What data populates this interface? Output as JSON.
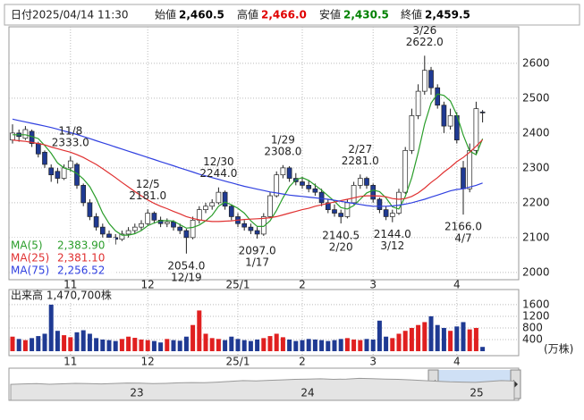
{
  "header": {
    "date_label": "日付",
    "datetime": "2025/04/14 11:30",
    "fields": [
      {
        "label": "始値",
        "value": "2,460.5",
        "color": "#000000"
      },
      {
        "label": "高値",
        "value": "2,466.0",
        "color": "#e00000"
      },
      {
        "label": "安値",
        "value": "2,430.5",
        "color": "#008000"
      },
      {
        "label": "終値",
        "value": "2,459.5",
        "color": "#000000"
      }
    ]
  },
  "chart_data": {
    "type": "candlestick",
    "categories": [
      null,
      null,
      null,
      null,
      null,
      null,
      null,
      null,
      null,
      "11",
      null,
      null,
      null,
      null,
      null,
      null,
      null,
      null,
      null,
      null,
      null,
      "12",
      null,
      null,
      null,
      null,
      null,
      null,
      null,
      null,
      null,
      null,
      null,
      null,
      null,
      "25/1",
      null,
      null,
      null,
      null,
      null,
      null,
      null,
      null,
      null,
      "2",
      null,
      null,
      null,
      null,
      null,
      null,
      null,
      null,
      null,
      null,
      "3",
      null,
      null,
      null,
      null,
      null,
      null,
      null,
      null,
      null,
      null,
      null,
      null,
      "4",
      null,
      null,
      null,
      null
    ],
    "candles": [
      [
        2380,
        2425,
        2370,
        2400
      ],
      [
        2400,
        2410,
        2375,
        2390
      ],
      [
        2385,
        2420,
        2380,
        2410
      ],
      [
        2405,
        2410,
        2360,
        2370
      ],
      [
        2370,
        2375,
        2330,
        2340
      ],
      [
        2345,
        2350,
        2300,
        2310
      ],
      [
        2300,
        2310,
        2260,
        2280
      ],
      [
        2290,
        2300,
        2255,
        2270
      ],
      [
        2270,
        2310,
        2265,
        2300
      ],
      [
        2300,
        2333,
        2290,
        2320
      ],
      [
        2310,
        2315,
        2240,
        2250
      ],
      [
        2250,
        2255,
        2190,
        2200
      ],
      [
        2200,
        2210,
        2150,
        2160
      ],
      [
        2160,
        2170,
        2120,
        2130
      ],
      [
        2130,
        2140,
        2100,
        2110
      ],
      [
        2110,
        2120,
        2085,
        2100
      ],
      [
        2100,
        2110,
        2080,
        2095
      ],
      [
        2095,
        2120,
        2090,
        2110
      ],
      [
        2110,
        2130,
        2100,
        2120
      ],
      [
        2120,
        2140,
        2110,
        2130
      ],
      [
        2130,
        2150,
        2120,
        2140
      ],
      [
        2140,
        2181,
        2135,
        2170
      ],
      [
        2170,
        2175,
        2140,
        2150
      ],
      [
        2150,
        2160,
        2130,
        2140
      ],
      [
        2140,
        2155,
        2130,
        2145
      ],
      [
        2145,
        2150,
        2120,
        2130
      ],
      [
        2130,
        2140,
        2110,
        2120
      ],
      [
        2120,
        2125,
        2054,
        2100
      ],
      [
        2100,
        2160,
        2095,
        2150
      ],
      [
        2150,
        2190,
        2140,
        2180
      ],
      [
        2180,
        2200,
        2170,
        2190
      ],
      [
        2190,
        2210,
        2180,
        2200
      ],
      [
        2200,
        2244,
        2195,
        2230
      ],
      [
        2230,
        2235,
        2180,
        2190
      ],
      [
        2190,
        2195,
        2150,
        2160
      ],
      [
        2160,
        2170,
        2130,
        2140
      ],
      [
        2140,
        2150,
        2120,
        2130
      ],
      [
        2130,
        2140,
        2110,
        2120
      ],
      [
        2120,
        2130,
        2097,
        2110
      ],
      [
        2110,
        2170,
        2105,
        2160
      ],
      [
        2160,
        2230,
        2155,
        2220
      ],
      [
        2220,
        2290,
        2215,
        2280
      ],
      [
        2280,
        2308,
        2270,
        2300
      ],
      [
        2300,
        2305,
        2260,
        2270
      ],
      [
        2270,
        2285,
        2250,
        2260
      ],
      [
        2260,
        2275,
        2240,
        2250
      ],
      [
        2250,
        2265,
        2230,
        2240
      ],
      [
        2240,
        2255,
        2220,
        2230
      ],
      [
        2230,
        2240,
        2190,
        2200
      ],
      [
        2200,
        2210,
        2170,
        2180
      ],
      [
        2180,
        2195,
        2160,
        2170
      ],
      [
        2170,
        2180,
        2140.5,
        2160
      ],
      [
        2160,
        2210,
        2155,
        2200
      ],
      [
        2200,
        2260,
        2195,
        2250
      ],
      [
        2250,
        2281,
        2240,
        2270
      ],
      [
        2270,
        2275,
        2240,
        2250
      ],
      [
        2250,
        2255,
        2200,
        2210
      ],
      [
        2210,
        2215,
        2170,
        2180
      ],
      [
        2180,
        2190,
        2150,
        2160
      ],
      [
        2160,
        2180,
        2144,
        2170
      ],
      [
        2170,
        2240,
        2165,
        2230
      ],
      [
        2230,
        2360,
        2225,
        2350
      ],
      [
        2350,
        2470,
        2340,
        2450
      ],
      [
        2450,
        2540,
        2440,
        2520
      ],
      [
        2520,
        2622,
        2510,
        2580
      ],
      [
        2580,
        2590,
        2510,
        2530
      ],
      [
        2530,
        2540,
        2470,
        2480
      ],
      [
        2480,
        2490,
        2400,
        2420
      ],
      [
        2420,
        2470,
        2410,
        2450
      ],
      [
        2450,
        2460,
        2370,
        2380
      ],
      [
        2300,
        2320,
        2166,
        2240
      ],
      [
        2240,
        2370,
        2230,
        2350
      ],
      [
        2350,
        2490,
        2340,
        2470
      ],
      [
        2460.5,
        2466,
        2430.5,
        2459.5
      ]
    ],
    "up_color": "#ffffff",
    "down_color": "#1f3a93",
    "series": [
      {
        "name": "MA(5)",
        "last_label": "2,383.90",
        "color": "#2a9d2a",
        "values": [
          2395,
          2395,
          2395,
          2390,
          2384,
          2364,
          2342,
          2314,
          2300,
          2294,
          2284,
          2268,
          2246,
          2212,
          2170,
          2140,
          2119,
          2107,
          2107,
          2111,
          2120,
          2134,
          2142,
          2148,
          2149,
          2147,
          2137,
          2127,
          2129,
          2136,
          2148,
          2164,
          2190,
          2202,
          2194,
          2184,
          2170,
          2148,
          2132,
          2132,
          2148,
          2178,
          2214,
          2246,
          2266,
          2272,
          2264,
          2250,
          2236,
          2220,
          2204,
          2186,
          2182,
          2192,
          2210,
          2228,
          2236,
          2232,
          2214,
          2188,
          2182,
          2218,
          2272,
          2344,
          2426,
          2486,
          2512,
          2508,
          2492,
          2452,
          2394,
          2348,
          2338,
          2383.9
        ]
      },
      {
        "name": "MA(25)",
        "last_label": "2,381.10",
        "color": "#e03030",
        "values": [
          2380,
          2378,
          2376,
          2373,
          2370,
          2366,
          2360,
          2355,
          2350,
          2345,
          2338,
          2330,
          2320,
          2310,
          2298,
          2285,
          2272,
          2258,
          2245,
          2232,
          2220,
          2208,
          2198,
          2190,
          2183,
          2175,
          2168,
          2160,
          2155,
          2151,
          2148,
          2146,
          2146,
          2147,
          2148,
          2150,
          2152,
          2153,
          2154,
          2155,
          2157,
          2160,
          2165,
          2170,
          2175,
          2180,
          2184,
          2190,
          2194,
          2198,
          2202,
          2206,
          2210,
          2214,
          2218,
          2220,
          2220,
          2219,
          2217,
          2212,
          2210,
          2212,
          2218,
          2228,
          2242,
          2258,
          2272,
          2288,
          2302,
          2318,
          2330,
          2345,
          2362,
          2381.1
        ]
      },
      {
        "name": "MA(75)",
        "last_label": "2,256.52",
        "color": "#3040e0",
        "values": [
          2440,
          2436,
          2432,
          2428,
          2424,
          2420,
          2416,
          2411,
          2406,
          2401,
          2396,
          2390,
          2384,
          2378,
          2372,
          2366,
          2360,
          2354,
          2348,
          2342,
          2336,
          2330,
          2324,
          2318,
          2312,
          2306,
          2300,
          2294,
          2288,
          2282,
          2277,
          2272,
          2267,
          2262,
          2257,
          2252,
          2247,
          2243,
          2239,
          2235,
          2231,
          2228,
          2225,
          2222,
          2220,
          2218,
          2216,
          2214,
          2212,
          2210,
          2207,
          2204,
          2201,
          2198,
          2195,
          2192,
          2190,
          2190,
          2190,
          2191,
          2193,
          2196,
          2200,
          2205,
          2210,
          2216,
          2222,
          2228,
          2234,
          2238,
          2240,
          2245,
          2250,
          2256.52
        ]
      }
    ],
    "ylim": [
      1979,
      2705
    ],
    "yticks": [
      2000,
      2100,
      2200,
      2300,
      2400,
      2500,
      2600
    ],
    "grid": true,
    "annotations": [
      {
        "date": "11/8",
        "value": 2333,
        "label": "2333.0"
      },
      {
        "date": "12/5",
        "value": 2181,
        "label": "2181.0"
      },
      {
        "date": "12/19",
        "value": 2054,
        "label": "2054.0"
      },
      {
        "date": "12/30",
        "value": 2244,
        "label": "2244.0"
      },
      {
        "date": "1/17",
        "value": 2097,
        "label": "2097.0"
      },
      {
        "date": "1/29",
        "value": 2308,
        "label": "2308.0"
      },
      {
        "date": "2/20",
        "value": 2140.5,
        "label": "2140.5"
      },
      {
        "date": "2/27",
        "value": 2281,
        "label": "2281.0"
      },
      {
        "date": "3/12",
        "value": 2144,
        "label": "2144.0"
      },
      {
        "date": "3/26",
        "value": 2622,
        "label": "2622.0"
      },
      {
        "date": "4/7",
        "value": 2166,
        "label": "2166.0"
      }
    ],
    "volume": {
      "caption": "出来高  1,470,700株",
      "unit": "(万株)",
      "up_color": "#e02020",
      "down_color": "#1f3a93",
      "values": [
        500,
        420,
        380,
        450,
        520,
        600,
        1600,
        700,
        550,
        480,
        650,
        720,
        600,
        450,
        400,
        380,
        350,
        420,
        500,
        460,
        400,
        380,
        350,
        300,
        420,
        380,
        360,
        500,
        900,
        1400,
        600,
        450,
        420,
        380,
        500,
        420,
        380,
        350,
        400,
        450,
        520,
        600,
        480,
        400,
        350,
        380,
        420,
        400,
        380,
        350,
        380,
        420,
        450,
        400,
        380,
        420,
        400,
        1050,
        500,
        450,
        600,
        700,
        800,
        900,
        1000,
        1200,
        900,
        800,
        700,
        850,
        1000,
        750,
        800,
        147.07
      ],
      "ylim": [
        0,
        2120
      ],
      "yticks": [
        400,
        800,
        1200,
        1600
      ]
    },
    "navigator": {
      "labels": [
        "23",
        "24",
        "25"
      ],
      "ylim": [
        1000,
        3000
      ],
      "values": [
        2050,
        2080,
        2100,
        2060,
        2090,
        2120,
        2100,
        2080,
        2110,
        2140,
        2130,
        2100,
        2120,
        2150,
        2170,
        2160,
        2200,
        2250,
        2300,
        2280,
        2320,
        2350,
        2380,
        2400,
        2420,
        2380,
        2400,
        2450,
        2430,
        2400,
        2380,
        2350,
        2300,
        2260,
        2220,
        2200,
        2180,
        2240,
        2300,
        2270
      ]
    }
  }
}
